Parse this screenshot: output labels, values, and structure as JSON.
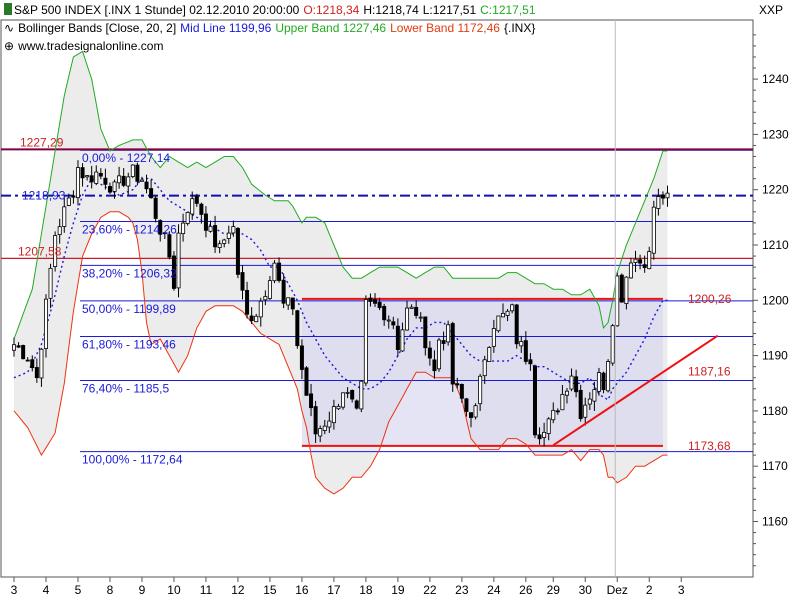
{
  "header": {
    "symbol_line": "S&P 500 INDEX [.INX 1 Stunde] 02.12.2010 20:00:00",
    "open": "O:1218,34",
    "high": "H:1218,74",
    "low": "L:1217,51",
    "close": "C:1217,51",
    "indicator_name": "Bollinger Bands [Close, 20, 2]",
    "mid_line": "Mid Line 1199,96",
    "upper_band": "Upper Band 1227,46",
    "lower_band": "Lower Band 1172,46",
    "indicator_symbol": "{.INX}",
    "source": "www.tradesignalonline.com",
    "axis_symbol": "XXP"
  },
  "colors": {
    "candle_up": "#ffffff",
    "candle_down": "#000000",
    "upper_band": "#22aa22",
    "lower_band": "#ee3311",
    "mid_line": "#1a1ad8",
    "level_line": "#1a1ad8",
    "resistance": "#800040",
    "red_line": "#ee1111",
    "channel_fill": "#d8d8f0",
    "band_fill": "#ececec"
  },
  "chart_data": {
    "type": "candlestick",
    "title": "S&P 500 INDEX [.INX 1 Stunde]",
    "ylim": [
      1150,
      1250
    ],
    "y_ticks": [
      1160,
      1170,
      1180,
      1190,
      1200,
      1210,
      1220,
      1230,
      1240
    ],
    "x_tick_labels": [
      "3",
      "4",
      "5",
      "8",
      "9",
      "10",
      "11",
      "12",
      "15",
      "16",
      "17",
      "18",
      "19",
      "22",
      "23",
      "24",
      "26",
      "29",
      "30",
      "Dez",
      "2",
      "3"
    ],
    "x_tick_positions": [
      0,
      7,
      14,
      21,
      28,
      35,
      42,
      49,
      56,
      63,
      70,
      77,
      84,
      91,
      98,
      105,
      112,
      118,
      125,
      132,
      139,
      146
    ],
    "bar_count": 155,
    "grid": false,
    "fib_levels": [
      {
        "label": "0,00% - 1227,14",
        "value": 1227.14
      },
      {
        "label": "23,60% - 1214,26",
        "value": 1214.26
      },
      {
        "label": "38,20% - 1206,32",
        "value": 1206.32
      },
      {
        "label": "50,00% - 1199,89",
        "value": 1199.89
      },
      {
        "label": "61,80% - 1193,46",
        "value": 1193.46
      },
      {
        "label": "76,40% - 1185,5",
        "value": 1185.5
      },
      {
        "label": "100,00% - 1172,64",
        "value": 1172.64
      }
    ],
    "horizontal_levels": [
      {
        "label": "1227,29",
        "value": 1227.29,
        "style": "resistance"
      },
      {
        "label": "1218,93",
        "value": 1218.93,
        "style": "dashdot"
      },
      {
        "label": "1207,58",
        "value": 1207.58,
        "style": "red"
      }
    ],
    "channel_labels": [
      {
        "label": "1200,26",
        "value": 1200.26
      },
      {
        "label": "1187,16",
        "value": 1187.16
      },
      {
        "label": "1173,68",
        "value": 1173.68
      }
    ],
    "channel": {
      "x_start": 63,
      "x_end": 142,
      "top": 1200.26,
      "bottom": 1173.68
    },
    "trendline": {
      "x1": 118,
      "y1": 1173.8,
      "x2": 154,
      "y2": 1193.6
    },
    "close_anchors": [
      [
        0,
        1192
      ],
      [
        3,
        1190
      ],
      [
        5,
        1186
      ],
      [
        7,
        1199
      ],
      [
        9,
        1212
      ],
      [
        11,
        1216
      ],
      [
        13,
        1220
      ],
      [
        14,
        1224
      ],
      [
        16,
        1222
      ],
      [
        18,
        1223
      ],
      [
        20,
        1222
      ],
      [
        22,
        1220
      ],
      [
        24,
        1222
      ],
      [
        26,
        1223
      ],
      [
        28,
        1222
      ],
      [
        30,
        1218
      ],
      [
        32,
        1213
      ],
      [
        34,
        1208
      ],
      [
        35,
        1203
      ],
      [
        36,
        1212
      ],
      [
        38,
        1217
      ],
      [
        40,
        1218
      ],
      [
        41,
        1216
      ],
      [
        43,
        1212
      ],
      [
        45,
        1209
      ],
      [
        47,
        1213
      ],
      [
        48,
        1213
      ],
      [
        49,
        1205
      ],
      [
        51,
        1197
      ],
      [
        53,
        1198
      ],
      [
        55,
        1202
      ],
      [
        56,
        1205
      ],
      [
        57,
        1207
      ],
      [
        59,
        1199
      ],
      [
        61,
        1199
      ],
      [
        62,
        1192
      ],
      [
        64,
        1183
      ],
      [
        66,
        1176
      ],
      [
        68,
        1178
      ],
      [
        70,
        1180
      ],
      [
        72,
        1184
      ],
      [
        74,
        1181
      ],
      [
        75,
        1179
      ],
      [
        76,
        1184
      ],
      [
        77,
        1199
      ],
      [
        79,
        1199
      ],
      [
        81,
        1198
      ],
      [
        83,
        1196
      ],
      [
        84,
        1192
      ],
      [
        86,
        1198
      ],
      [
        88,
        1198
      ],
      [
        90,
        1193
      ],
      [
        92,
        1187
      ],
      [
        93,
        1193
      ],
      [
        95,
        1194
      ],
      [
        96,
        1185
      ],
      [
        98,
        1182
      ],
      [
        99,
        1180
      ],
      [
        101,
        1180
      ],
      [
        103,
        1190
      ],
      [
        105,
        1196
      ],
      [
        107,
        1197
      ],
      [
        109,
        1198
      ],
      [
        110,
        1193
      ],
      [
        112,
        1190
      ],
      [
        113,
        1190
      ],
      [
        114,
        1177
      ],
      [
        116,
        1176
      ],
      [
        118,
        1179
      ],
      [
        120,
        1183
      ],
      [
        122,
        1187
      ],
      [
        124,
        1180
      ],
      [
        126,
        1183
      ],
      [
        128,
        1186
      ],
      [
        129,
        1185
      ],
      [
        130,
        1190
      ],
      [
        132,
        1204
      ],
      [
        133,
        1201
      ],
      [
        135,
        1208
      ],
      [
        137,
        1207
      ],
      [
        139,
        1208
      ],
      [
        140,
        1217
      ],
      [
        142,
        1219
      ],
      [
        143,
        1218
      ]
    ],
    "upper_anchors": [
      [
        0,
        1193
      ],
      [
        4,
        1202
      ],
      [
        8,
        1222
      ],
      [
        11,
        1237
      ],
      [
        13,
        1244
      ],
      [
        15,
        1245
      ],
      [
        17,
        1240
      ],
      [
        19,
        1231
      ],
      [
        21,
        1227
      ],
      [
        23,
        1228
      ],
      [
        26,
        1229
      ],
      [
        28,
        1229
      ],
      [
        30,
        1226
      ],
      [
        32,
        1224
      ],
      [
        34,
        1226
      ],
      [
        36,
        1225
      ],
      [
        38,
        1224
      ],
      [
        40,
        1225
      ],
      [
        42,
        1224
      ],
      [
        44,
        1225
      ],
      [
        46,
        1226
      ],
      [
        48,
        1226
      ],
      [
        50,
        1224
      ],
      [
        52,
        1221
      ],
      [
        55,
        1219
      ],
      [
        57,
        1218
      ],
      [
        59,
        1218
      ],
      [
        60,
        1218
      ],
      [
        61,
        1217
      ],
      [
        63,
        1214
      ],
      [
        64,
        1215
      ],
      [
        66,
        1215
      ],
      [
        68,
        1214
      ],
      [
        70,
        1210
      ],
      [
        72,
        1206
      ],
      [
        74,
        1204
      ],
      [
        76,
        1204
      ],
      [
        78,
        1205
      ],
      [
        80,
        1206
      ],
      [
        82,
        1206
      ],
      [
        84,
        1206
      ],
      [
        86,
        1205
      ],
      [
        88,
        1204
      ],
      [
        90,
        1205
      ],
      [
        92,
        1206
      ],
      [
        94,
        1206
      ],
      [
        96,
        1204
      ],
      [
        98,
        1204
      ],
      [
        100,
        1204
      ],
      [
        102,
        1204
      ],
      [
        104,
        1204
      ],
      [
        106,
        1204
      ],
      [
        108,
        1205
      ],
      [
        110,
        1205
      ],
      [
        112,
        1204
      ],
      [
        114,
        1203
      ],
      [
        116,
        1203
      ],
      [
        118,
        1202
      ],
      [
        120,
        1202
      ],
      [
        122,
        1201
      ],
      [
        124,
        1201
      ],
      [
        126,
        1202
      ],
      [
        128,
        1199
      ],
      [
        129,
        1195
      ],
      [
        130,
        1196
      ],
      [
        131,
        1200
      ],
      [
        132,
        1205
      ],
      [
        134,
        1210
      ],
      [
        136,
        1214
      ],
      [
        138,
        1218
      ],
      [
        140,
        1222
      ],
      [
        142,
        1227
      ]
    ],
    "lower_anchors": [
      [
        0,
        1180
      ],
      [
        3,
        1177
      ],
      [
        6,
        1172
      ],
      [
        9,
        1176
      ],
      [
        11,
        1185
      ],
      [
        13,
        1198
      ],
      [
        15,
        1208
      ],
      [
        17,
        1212
      ],
      [
        19,
        1215
      ],
      [
        21,
        1216
      ],
      [
        23,
        1216
      ],
      [
        25,
        1215
      ],
      [
        26,
        1214
      ],
      [
        27,
        1211
      ],
      [
        28,
        1205
      ],
      [
        29,
        1196
      ],
      [
        30,
        1192
      ],
      [
        32,
        1193
      ],
      [
        34,
        1190
      ],
      [
        36,
        1187
      ],
      [
        38,
        1190
      ],
      [
        40,
        1195
      ],
      [
        42,
        1198
      ],
      [
        44,
        1199
      ],
      [
        46,
        1199
      ],
      [
        48,
        1199
      ],
      [
        50,
        1198
      ],
      [
        52,
        1196
      ],
      [
        54,
        1194
      ],
      [
        56,
        1193
      ],
      [
        58,
        1192
      ],
      [
        59,
        1190
      ],
      [
        60,
        1188
      ],
      [
        62,
        1184
      ],
      [
        63,
        1180
      ],
      [
        64,
        1177
      ],
      [
        65,
        1172
      ],
      [
        66,
        1168
      ],
      [
        68,
        1166
      ],
      [
        70,
        1165
      ],
      [
        72,
        1166
      ],
      [
        74,
        1168
      ],
      [
        76,
        1168
      ],
      [
        78,
        1170
      ],
      [
        80,
        1173
      ],
      [
        82,
        1178
      ],
      [
        84,
        1181
      ],
      [
        86,
        1184
      ],
      [
        88,
        1187
      ],
      [
        90,
        1187
      ],
      [
        92,
        1186
      ],
      [
        94,
        1186
      ],
      [
        96,
        1186
      ],
      [
        98,
        1182
      ],
      [
        100,
        1175
      ],
      [
        102,
        1173
      ],
      [
        104,
        1173
      ],
      [
        106,
        1173
      ],
      [
        108,
        1175
      ],
      [
        110,
        1175
      ],
      [
        112,
        1174
      ],
      [
        114,
        1172
      ],
      [
        116,
        1172
      ],
      [
        118,
        1172
      ],
      [
        120,
        1172
      ],
      [
        122,
        1173
      ],
      [
        124,
        1171
      ],
      [
        126,
        1173
      ],
      [
        128,
        1173
      ],
      [
        129,
        1172
      ],
      [
        130,
        1168
      ],
      [
        131,
        1168
      ],
      [
        132,
        1167
      ],
      [
        134,
        1168
      ],
      [
        136,
        1170
      ],
      [
        138,
        1170
      ],
      [
        140,
        1171
      ],
      [
        142,
        1172
      ]
    ],
    "mid_anchors": [
      [
        0,
        1186
      ],
      [
        3,
        1187
      ],
      [
        6,
        1192
      ],
      [
        9,
        1201
      ],
      [
        11,
        1208
      ],
      [
        13,
        1214
      ],
      [
        15,
        1219
      ],
      [
        17,
        1222
      ],
      [
        19,
        1221
      ],
      [
        21,
        1220
      ],
      [
        23,
        1219
      ],
      [
        26,
        1220
      ],
      [
        28,
        1222
      ],
      [
        30,
        1222
      ],
      [
        32,
        1220
      ],
      [
        34,
        1218
      ],
      [
        36,
        1217
      ],
      [
        38,
        1216
      ],
      [
        40,
        1215
      ],
      [
        42,
        1214
      ],
      [
        44,
        1213
      ],
      [
        46,
        1212
      ],
      [
        48,
        1212
      ],
      [
        50,
        1212
      ],
      [
        52,
        1211
      ],
      [
        54,
        1209
      ],
      [
        56,
        1206
      ],
      [
        58,
        1206
      ],
      [
        60,
        1203
      ],
      [
        62,
        1200
      ],
      [
        64,
        1196
      ],
      [
        66,
        1193
      ],
      [
        68,
        1190
      ],
      [
        70,
        1188
      ],
      [
        72,
        1186
      ],
      [
        74,
        1185
      ],
      [
        76,
        1184
      ],
      [
        78,
        1184
      ],
      [
        80,
        1185
      ],
      [
        82,
        1187
      ],
      [
        84,
        1190
      ],
      [
        86,
        1193
      ],
      [
        88,
        1195
      ],
      [
        90,
        1195
      ],
      [
        92,
        1196
      ],
      [
        94,
        1196
      ],
      [
        96,
        1194
      ],
      [
        98,
        1192
      ],
      [
        100,
        1190
      ],
      [
        102,
        1189
      ],
      [
        104,
        1189
      ],
      [
        106,
        1189
      ],
      [
        108,
        1189
      ],
      [
        110,
        1190
      ],
      [
        112,
        1189
      ],
      [
        114,
        1188
      ],
      [
        116,
        1188
      ],
      [
        118,
        1187
      ],
      [
        120,
        1186
      ],
      [
        122,
        1185
      ],
      [
        124,
        1185
      ],
      [
        126,
        1186
      ],
      [
        128,
        1183
      ],
      [
        130,
        1182
      ],
      [
        131,
        1184
      ],
      [
        132,
        1185
      ],
      [
        134,
        1187
      ],
      [
        136,
        1190
      ],
      [
        138,
        1193
      ],
      [
        140,
        1197
      ],
      [
        142,
        1200
      ]
    ]
  }
}
